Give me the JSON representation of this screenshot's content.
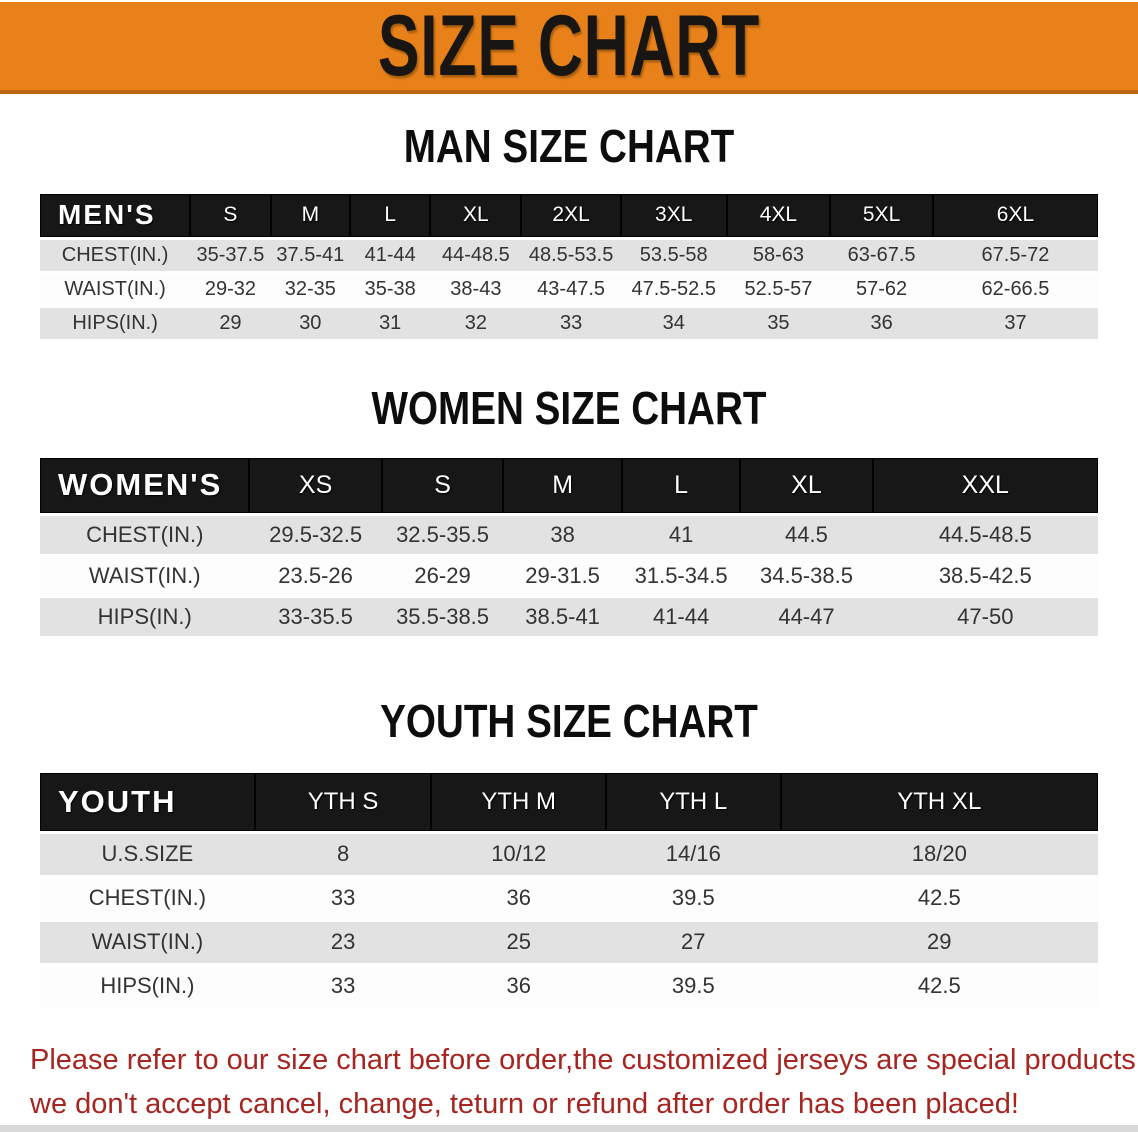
{
  "banner": {
    "title": "SIZE CHART",
    "bg_color": "#e8811a"
  },
  "sections": [
    {
      "title": "MAN SIZE CHART",
      "header_label": "MEN'S",
      "columns": [
        "S",
        "M",
        "L",
        "XL",
        "2XL",
        "3XL",
        "4XL",
        "5XL",
        "6XL"
      ],
      "rows": [
        {
          "label": "CHEST(IN.)",
          "values": [
            "35-37.5",
            "37.5-41",
            "41-44",
            "44-48.5",
            "48.5-53.5",
            "53.5-58",
            "58-63",
            "63-67.5",
            "67.5-72"
          ]
        },
        {
          "label": "WAIST(IN.)",
          "values": [
            "29-32",
            "32-35",
            "35-38",
            "38-43",
            "43-47.5",
            "47.5-52.5",
            "52.5-57",
            "57-62",
            "62-66.5"
          ]
        },
        {
          "label": "HIPS(IN.)",
          "values": [
            "29",
            "30",
            "31",
            "32",
            "33",
            "34",
            "35",
            "36",
            "37"
          ]
        }
      ]
    },
    {
      "title": "WOMEN SIZE CHART",
      "header_label": "WOMEN'S",
      "columns": [
        "XS",
        "S",
        "M",
        "L",
        "XL",
        "XXL"
      ],
      "rows": [
        {
          "label": "CHEST(IN.)",
          "values": [
            "29.5-32.5",
            "32.5-35.5",
            "38",
            "41",
            "44.5",
            "44.5-48.5"
          ]
        },
        {
          "label": "WAIST(IN.)",
          "values": [
            "23.5-26",
            "26-29",
            "29-31.5",
            "31.5-34.5",
            "34.5-38.5",
            "38.5-42.5"
          ]
        },
        {
          "label": "HIPS(IN.)",
          "values": [
            "33-35.5",
            "35.5-38.5",
            "38.5-41",
            "41-44",
            "44-47",
            "47-50"
          ]
        }
      ]
    },
    {
      "title": "YOUTH SIZE CHART",
      "header_label": "YOUTH",
      "columns": [
        "YTH S",
        "YTH M",
        "YTH L",
        "YTH XL"
      ],
      "rows": [
        {
          "label": "U.S.SIZE",
          "values": [
            "8",
            "10/12",
            "14/16",
            "18/20"
          ]
        },
        {
          "label": "CHEST(IN.)",
          "values": [
            "33",
            "36",
            "39.5",
            "42.5"
          ]
        },
        {
          "label": "WAIST(IN.)",
          "values": [
            "23",
            "25",
            "27",
            "29"
          ]
        },
        {
          "label": "HIPS(IN.)",
          "values": [
            "33",
            "36",
            "39.5",
            "42.5"
          ]
        }
      ]
    }
  ],
  "footer": {
    "line1": "Please refer to our size chart before order,the customized jerseys are special products,",
    "line2": "we don't accept cancel, change, teturn or refund after order has been placed!",
    "text_color": "#a62520"
  },
  "colors": {
    "banner_orange": "#e8811a",
    "banner_border": "#bf6710",
    "header_black": "#171717",
    "row_gray": "#e2e2e2",
    "bottom_strip_gray": "#d9d9d9"
  }
}
